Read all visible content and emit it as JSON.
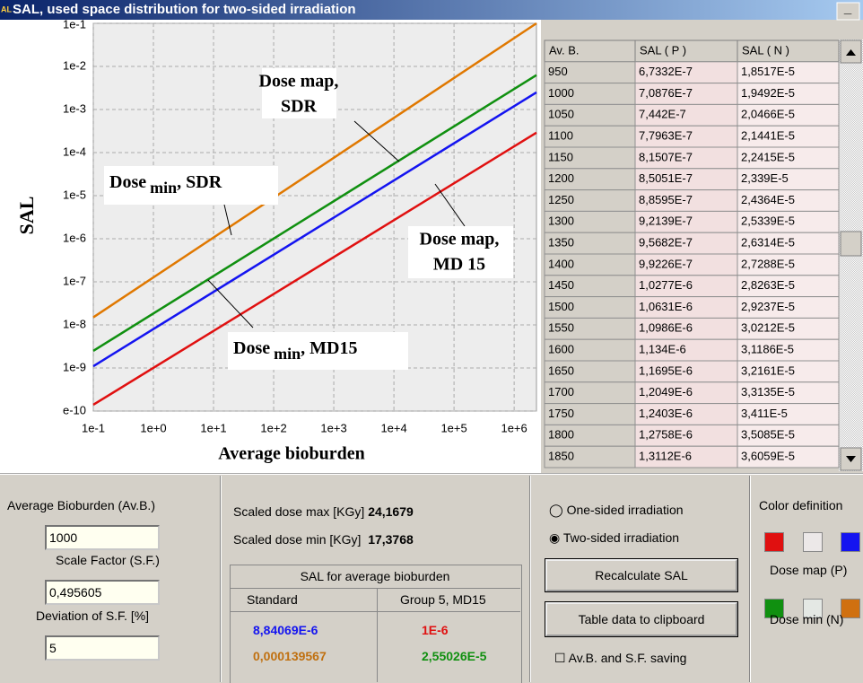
{
  "window": {
    "icon": "AL",
    "title": "SAL, used space distribution for two-sided irradiation",
    "minimize": "_"
  },
  "chart_data": {
    "type": "line",
    "xlabel": "Average bioburden",
    "ylabel": "SAL",
    "log_x": true,
    "log_y": true,
    "grid": true,
    "x": [
      0.1,
      2350000
    ],
    "series": [
      {
        "color": "#e07800",
        "values": [
          1.5e-08,
          0.1
        ]
      },
      {
        "color": "#109010",
        "values": [
          2.5e-09,
          0.0063
        ]
      },
      {
        "color": "#1414f0",
        "values": [
          1.1e-09,
          0.0025
        ]
      },
      {
        "color": "#e01010",
        "values": [
          1.4e-10,
          0.00029
        ]
      }
    ],
    "xlim": [
      0.1,
      2350000
    ],
    "ylim": [
      1e-10,
      0.1
    ],
    "xticks": [
      {
        "value": 0.1,
        "label": "1e-1"
      },
      {
        "value": 1,
        "label": "1e+0"
      },
      {
        "value": 10,
        "label": "1e+1"
      },
      {
        "value": 100,
        "label": "1e+2"
      },
      {
        "value": 1000,
        "label": "1e+3"
      },
      {
        "value": 10000,
        "label": "1e+4"
      },
      {
        "value": 100000,
        "label": "1e+5"
      },
      {
        "value": 1000000,
        "label": "1e+6"
      }
    ],
    "yticks": [
      {
        "value": 1e-10,
        "label": "e-10"
      },
      {
        "value": 1e-09,
        "label": "1e-9"
      },
      {
        "value": 1e-08,
        "label": "1e-8"
      },
      {
        "value": 1e-07,
        "label": "1e-7"
      },
      {
        "value": 1e-06,
        "label": "1e-6"
      },
      {
        "value": 1e-05,
        "label": "1e-5"
      },
      {
        "value": 0.0001,
        "label": "1e-4"
      },
      {
        "value": 0.001,
        "label": "1e-3"
      },
      {
        "value": 0.01,
        "label": "1e-2"
      },
      {
        "value": 0.1,
        "label": "1e-1"
      }
    ],
    "annotations": [
      {
        "lines": [
          "Dose map,",
          "SDR"
        ]
      },
      {
        "main": "Dose",
        "sub": "min",
        "rest": ", SDR"
      },
      {
        "lines": [
          "Dose map,",
          "MD 15"
        ]
      },
      {
        "main": "Dose",
        "sub": "min",
        "rest": ", MD15"
      }
    ]
  },
  "table": {
    "columns": [
      "Av. B.",
      "SAL ( P )",
      "SAL ( N )"
    ],
    "rows": [
      [
        "950",
        "6,7332E-7",
        "1,8517E-5"
      ],
      [
        "1000",
        "7,0876E-7",
        "1,9492E-5"
      ],
      [
        "1050",
        "7,442E-7",
        "2,0466E-5"
      ],
      [
        "1100",
        "7,7963E-7",
        "2,1441E-5"
      ],
      [
        "1150",
        "8,1507E-7",
        "2,2415E-5"
      ],
      [
        "1200",
        "8,5051E-7",
        "2,339E-5"
      ],
      [
        "1250",
        "8,8595E-7",
        "2,4364E-5"
      ],
      [
        "1300",
        "9,2139E-7",
        "2,5339E-5"
      ],
      [
        "1350",
        "9,5682E-7",
        "2,6314E-5"
      ],
      [
        "1400",
        "9,9226E-7",
        "2,7288E-5"
      ],
      [
        "1450",
        "1,0277E-6",
        "2,8263E-5"
      ],
      [
        "1500",
        "1,0631E-6",
        "2,9237E-5"
      ],
      [
        "1550",
        "1,0986E-6",
        "3,0212E-5"
      ],
      [
        "1600",
        "1,134E-6",
        "3,1186E-5"
      ],
      [
        "1650",
        "1,1695E-6",
        "3,2161E-5"
      ],
      [
        "1700",
        "1,2049E-6",
        "3,3135E-5"
      ],
      [
        "1750",
        "1,2403E-6",
        "3,411E-5"
      ],
      [
        "1800",
        "1,2758E-6",
        "3,5085E-5"
      ],
      [
        "1850",
        "1,3112E-6",
        "3,6059E-5"
      ]
    ]
  },
  "inputs": {
    "bioburden_label": "Average Bioburden (Av.B.)",
    "bioburden": "1000",
    "scale_label": "Scale Factor (S.F.)",
    "scale": "0,495605",
    "deviation_label": "Deviation of S.F. [%]",
    "deviation": "5"
  },
  "doses": {
    "max_label": "Scaled dose max [KGy]",
    "max": "24,1679",
    "min_label": "Scaled dose min [KGy]",
    "min": "17,3768"
  },
  "sal_group": {
    "title": "SAL for average bioburden",
    "col_standard": "Standard",
    "col_group": "Group 5, MD15",
    "standard_p": "8,84069E-6",
    "group_p": "1E-6",
    "standard_n": "0,000139567",
    "group_n": "2,55026E-5"
  },
  "controls": {
    "one_sided": "One-sided irradiation",
    "two_sided": "Two-sided irradiation",
    "recalc": "Recalculate SAL",
    "clipboard": "Table data to clipboard",
    "saving": "Av.B. and S.F. saving"
  },
  "colors": {
    "title": "Color definition",
    "map": "Dose map (P)",
    "min": "Dose min (N)"
  }
}
